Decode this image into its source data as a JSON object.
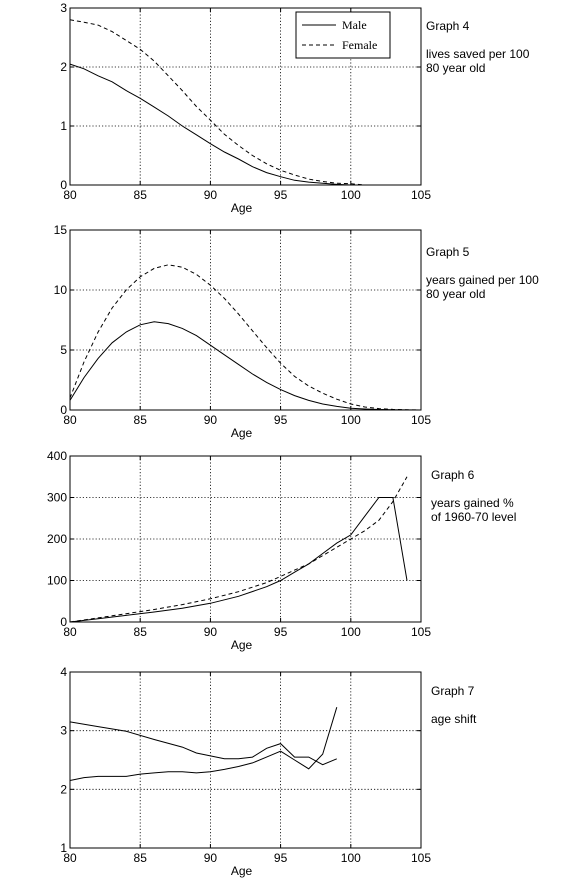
{
  "chart_data": [
    {
      "type": "line",
      "title": "Graph 4",
      "subtitle": "lives saved per 100\n80 year old",
      "xlabel": "Age",
      "ylabel": "",
      "xlim": [
        80,
        105
      ],
      "ylim": [
        0,
        3
      ],
      "xticks": [
        80,
        85,
        90,
        95,
        100,
        105
      ],
      "yticks": [
        0,
        1,
        2,
        3
      ],
      "grid": true,
      "legend": "top-right",
      "series": [
        {
          "name": "Male",
          "style": "solid",
          "x": [
            80,
            81,
            82,
            83,
            84,
            85,
            86,
            87,
            88,
            89,
            90,
            91,
            92,
            93,
            94,
            95,
            96,
            97,
            98,
            99,
            100,
            101,
            102
          ],
          "y": [
            2.05,
            1.97,
            1.85,
            1.75,
            1.6,
            1.47,
            1.32,
            1.17,
            1.0,
            0.85,
            0.7,
            0.56,
            0.44,
            0.31,
            0.21,
            0.14,
            0.08,
            0.05,
            0.03,
            0.01,
            0.0,
            0.0,
            0.0
          ]
        },
        {
          "name": "Female",
          "style": "dashed",
          "x": [
            80,
            81,
            82,
            83,
            84,
            85,
            86,
            87,
            88,
            89,
            90,
            91,
            92,
            93,
            94,
            95,
            96,
            97,
            98,
            99,
            100,
            101,
            102
          ],
          "y": [
            2.8,
            2.76,
            2.71,
            2.6,
            2.45,
            2.3,
            2.1,
            1.85,
            1.6,
            1.33,
            1.1,
            0.86,
            0.67,
            0.5,
            0.36,
            0.25,
            0.17,
            0.1,
            0.06,
            0.03,
            0.02,
            0.0,
            0.0
          ]
        }
      ]
    },
    {
      "type": "line",
      "title": "Graph 5",
      "subtitle": "years gained per 100\n80 year old",
      "xlabel": "Age",
      "ylabel": "",
      "xlim": [
        80,
        105
      ],
      "ylim": [
        0,
        15
      ],
      "xticks": [
        80,
        85,
        90,
        95,
        100,
        105
      ],
      "yticks": [
        0,
        5,
        10,
        15
      ],
      "grid": true,
      "series": [
        {
          "style": "solid",
          "x": [
            80,
            81,
            82,
            83,
            84,
            85,
            86,
            87,
            88,
            89,
            90,
            91,
            92,
            93,
            94,
            95,
            96,
            97,
            98,
            99,
            100,
            101,
            102,
            103,
            104,
            105
          ],
          "y": [
            0.8,
            2.7,
            4.3,
            5.6,
            6.5,
            7.1,
            7.35,
            7.2,
            6.8,
            6.2,
            5.4,
            4.6,
            3.8,
            3.0,
            2.3,
            1.7,
            1.2,
            0.8,
            0.5,
            0.3,
            0.15,
            0.08,
            0.04,
            0.02,
            0.01,
            0.0
          ]
        },
        {
          "style": "dashed",
          "x": [
            80,
            81,
            82,
            83,
            84,
            85,
            86,
            87,
            88,
            89,
            90,
            91,
            92,
            93,
            94,
            95,
            96,
            97,
            98,
            99,
            100,
            101,
            102,
            103,
            104,
            105
          ],
          "y": [
            1.0,
            4.0,
            6.5,
            8.5,
            10.0,
            11.1,
            11.8,
            12.1,
            11.9,
            11.3,
            10.4,
            9.3,
            8.0,
            6.6,
            5.2,
            3.9,
            2.8,
            2.0,
            1.4,
            0.9,
            0.5,
            0.25,
            0.12,
            0.05,
            0.02,
            0.0
          ]
        }
      ]
    },
    {
      "type": "line",
      "title": "Graph 6",
      "subtitle": "years gained %\nof 1960-70 level",
      "xlabel": "Age",
      "ylabel": "",
      "xlim": [
        80,
        105
      ],
      "ylim": [
        0,
        400
      ],
      "xticks": [
        80,
        85,
        90,
        95,
        100,
        105
      ],
      "yticks": [
        0,
        100,
        200,
        300,
        400
      ],
      "grid": true,
      "series": [
        {
          "style": "solid",
          "x": [
            80,
            82,
            84,
            86,
            88,
            90,
            92,
            94,
            95,
            96,
            97,
            98,
            99,
            100,
            101,
            102,
            103,
            104
          ],
          "y": [
            0,
            8,
            16,
            24,
            33,
            45,
            62,
            85,
            100,
            120,
            140,
            165,
            190,
            210,
            255,
            300,
            300,
            100
          ]
        },
        {
          "style": "dashed",
          "x": [
            80,
            82,
            84,
            86,
            88,
            90,
            92,
            94,
            95,
            96,
            97,
            98,
            99,
            100,
            101,
            102,
            103,
            104
          ],
          "y": [
            0,
            10,
            20,
            30,
            42,
            56,
            73,
            95,
            110,
            125,
            140,
            160,
            180,
            200,
            220,
            245,
            290,
            350
          ]
        }
      ]
    },
    {
      "type": "line",
      "title": "Graph 7",
      "subtitle": "age shift",
      "xlabel": "Age",
      "ylabel": "",
      "xlim": [
        80,
        105
      ],
      "ylim": [
        1,
        4
      ],
      "xticks": [
        80,
        85,
        90,
        95,
        100,
        105
      ],
      "yticks": [
        1,
        2,
        3,
        4
      ],
      "grid": true,
      "series": [
        {
          "style": "solid",
          "x": [
            80,
            82,
            84,
            86,
            88,
            89,
            90,
            91,
            92,
            93,
            94,
            95,
            96,
            97,
            98,
            99
          ],
          "y": [
            3.15,
            3.07,
            2.99,
            2.85,
            2.72,
            2.62,
            2.57,
            2.52,
            2.52,
            2.55,
            2.7,
            2.78,
            2.55,
            2.55,
            2.42,
            2.52
          ]
        },
        {
          "style": "solid",
          "x": [
            80,
            81,
            82,
            83,
            84,
            85,
            86,
            87,
            88,
            89,
            90,
            91,
            92,
            93,
            94,
            95,
            96,
            97,
            98,
            99
          ],
          "y": [
            2.15,
            2.2,
            2.22,
            2.22,
            2.22,
            2.26,
            2.28,
            2.3,
            2.3,
            2.28,
            2.3,
            2.34,
            2.39,
            2.45,
            2.55,
            2.65,
            2.5,
            2.35,
            2.6,
            3.4
          ]
        }
      ]
    }
  ]
}
